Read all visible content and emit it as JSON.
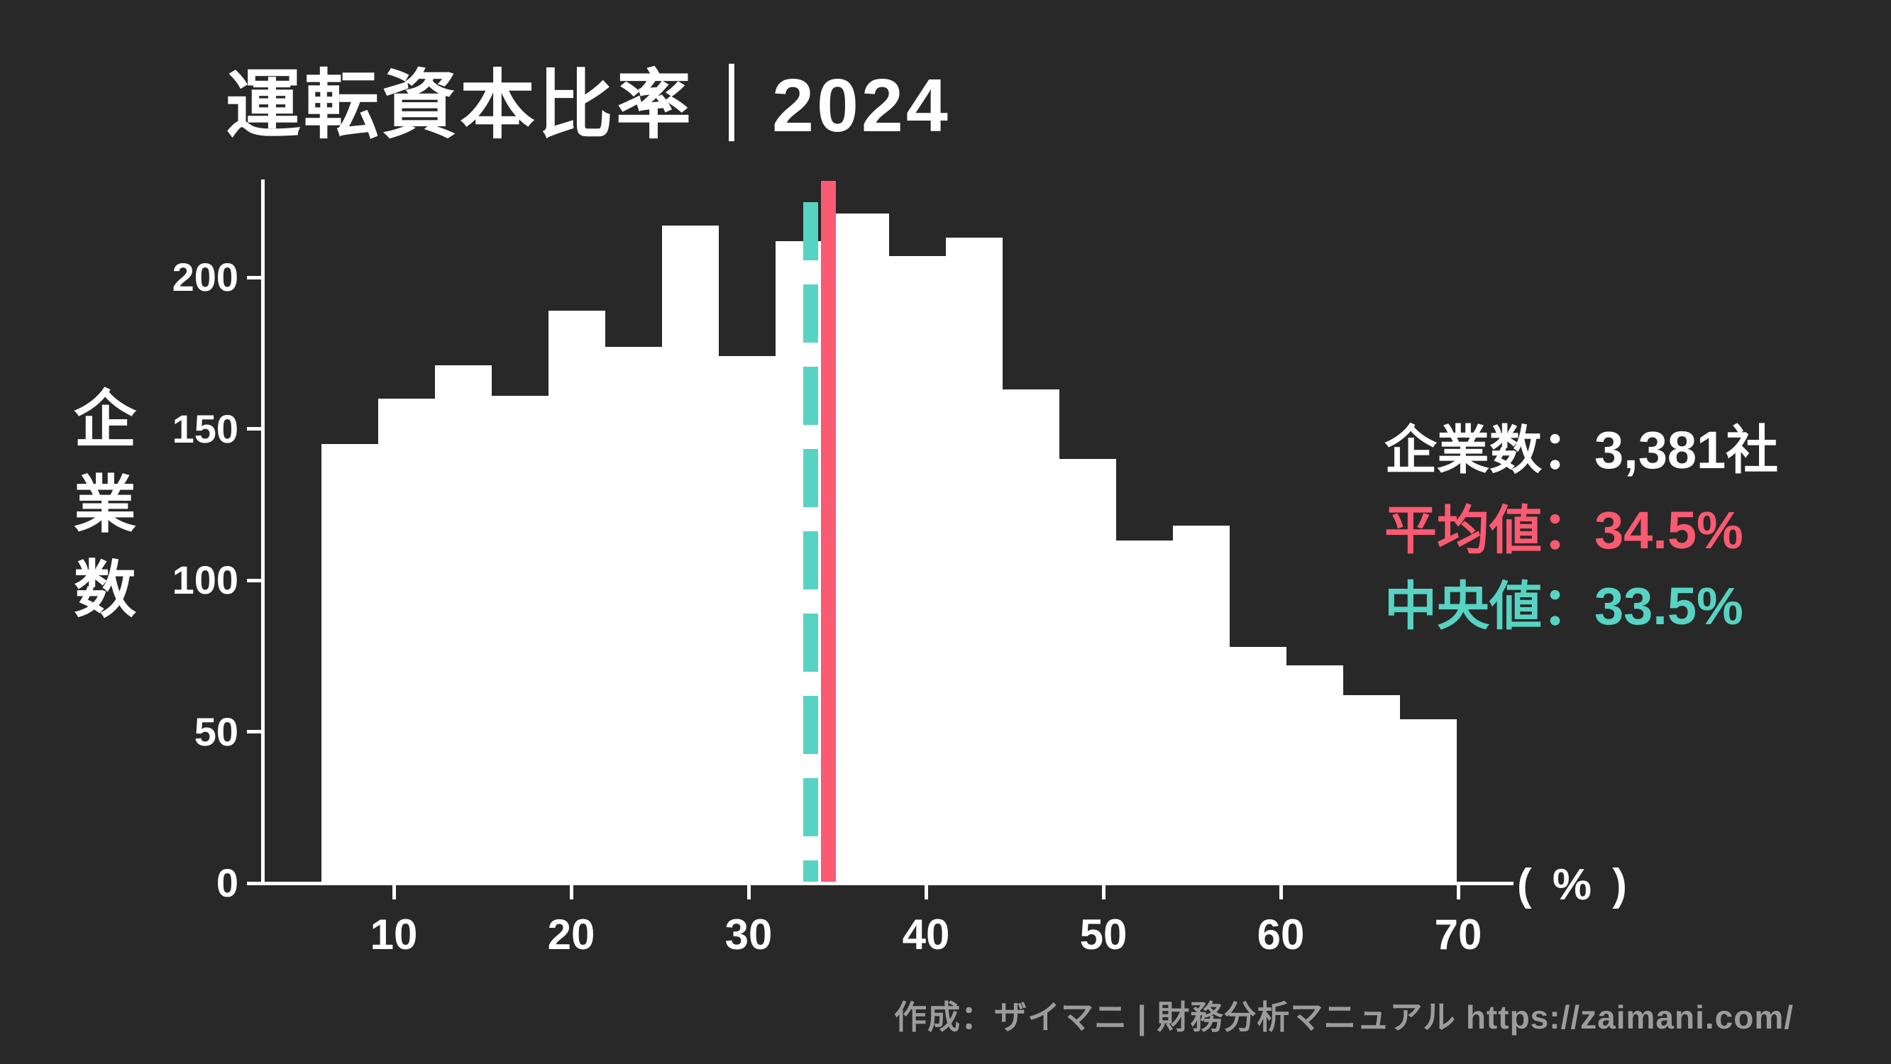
{
  "header": {
    "title": "運転資本比率｜2024"
  },
  "y_axis_title_chars": [
    "企",
    "業",
    "数"
  ],
  "legend": {
    "rows": [
      {
        "id": "count",
        "text": "企業数：3,381社",
        "color": "#ffffff"
      },
      {
        "id": "mean",
        "text": "平均値：34.5%",
        "color": "#fa5a72"
      },
      {
        "id": "median",
        "text": "中央値：33.5%",
        "color": "#57d3c4"
      }
    ]
  },
  "footer": {
    "credit": "作成：ザイマニ | 財務分析マニュアル https://zaimani.com/"
  },
  "chart_data": {
    "type": "bar",
    "title": "運転資本比率｜2024",
    "xlabel": "( % )",
    "ylabel": "企業数",
    "companies_total": 3381,
    "mean": 34.5,
    "median": 33.5,
    "bin_width": 3.2,
    "bin_edges": [
      5.9,
      9.1,
      12.3,
      15.5,
      18.7,
      21.9,
      25.1,
      28.3,
      31.5,
      34.7,
      37.9,
      41.1,
      44.3,
      47.5,
      50.7,
      53.9,
      57.1,
      60.3,
      63.5,
      66.7,
      69.9
    ],
    "values": [
      145,
      160,
      171,
      161,
      189,
      177,
      217,
      174,
      212,
      221,
      207,
      213,
      163,
      140,
      113,
      118,
      78,
      72,
      62,
      54
    ],
    "x_ticks": [
      10,
      20,
      30,
      40,
      50,
      60,
      70
    ],
    "y_ticks": [
      0,
      50,
      100,
      150,
      200
    ],
    "xlim": [
      5.9,
      70
    ],
    "ylim": [
      0,
      235
    ],
    "grid": false,
    "legend_position": "right",
    "colors": {
      "bar": "#ffffff",
      "mean_line": "#fa5a72",
      "median_line": "#57d3c4",
      "background": "#282828",
      "axis": "#ffffff"
    }
  },
  "pct_label_text": "( % )"
}
